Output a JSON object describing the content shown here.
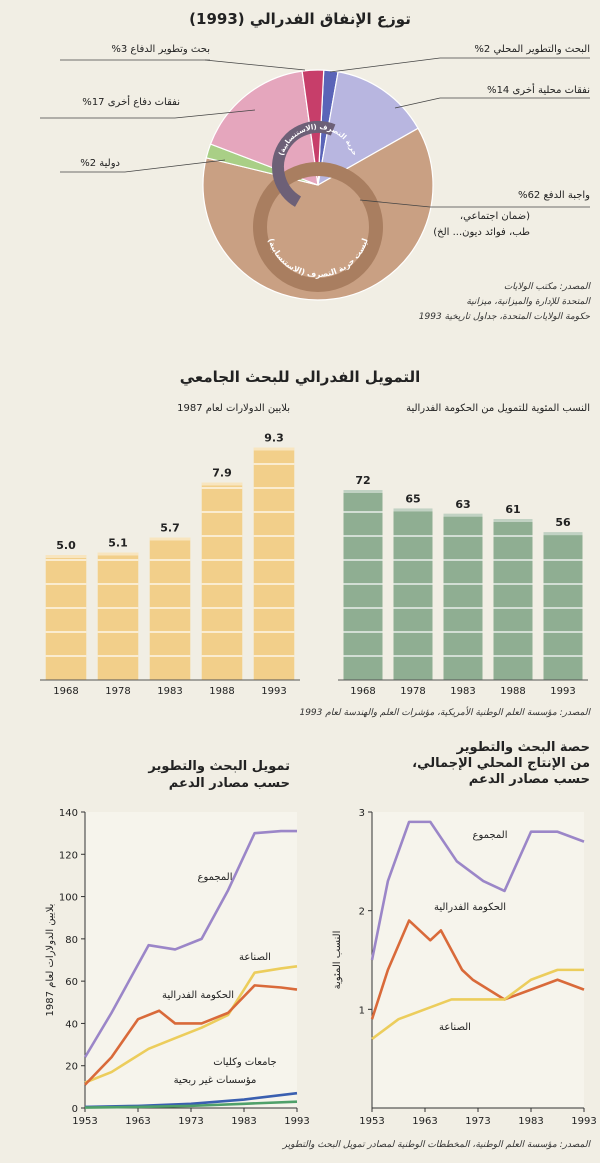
{
  "pie": {
    "title": "توزع الإنفاق الفدرالي (1993)",
    "labels": {
      "defense_rd": "بحث وتطوير الدفاع 3%",
      "domestic_rd": "البحث والتطوير المحلي 2%",
      "other_defense": "نفقات دفاع أخرى 17%",
      "other_domestic": "نفقات محلية أخرى 14%",
      "international": "دولية 2%",
      "mandatory": "واجبة الدفع 62%",
      "mandatory_note1": "(ضمان اجتماعي،",
      "mandatory_note2": "طب، فوائد ديون... الخ)"
    },
    "inner_discretionary": "حرية التصرف (الاستنسابية)",
    "inner_nondiscretionary": "ليست حرية التصرف (الاستنسابية)",
    "source": [
      "المصدر: مكتب الولايات",
      "المتحدة للإدارة والميزانية، ميزانية",
      "حكومة الولايات المتحدة، جداول تاريخية 1993"
    ],
    "colors": {
      "defense_rd": "#c73e6a",
      "domestic_rd": "#5a64b8",
      "other_defense": "#e5a6bd",
      "other_domestic": "#b8b6e0",
      "international": "#a9cf86",
      "mandatory": "#c9a083",
      "ring": "#a97e60"
    }
  },
  "chart_data": [
    {
      "type": "pie",
      "title": "توزع الإنفاق الفدرالي (1993)",
      "slices": [
        {
          "label": "البحث والتطوير المحلي",
          "value": 2
        },
        {
          "label": "نفقات محلية أخرى",
          "value": 14
        },
        {
          "label": "واجبة الدفع",
          "value": 62
        },
        {
          "label": "دولية",
          "value": 2
        },
        {
          "label": "نفقات دفاع أخرى",
          "value": 17
        },
        {
          "label": "بحث وتطوير الدفاع",
          "value": 3
        }
      ]
    },
    {
      "type": "bar",
      "title": "التمويل الفدرالي للبحث الجامعي",
      "subtitle": "بلايين الدولارات لعام 1987",
      "categories": [
        "1968",
        "1978",
        "1983",
        "1988",
        "1993"
      ],
      "values": [
        5.0,
        5.1,
        5.7,
        7.9,
        9.3
      ],
      "value_labels": [
        "5.0",
        "5.1",
        "5.7",
        "7.9",
        "9.3"
      ],
      "ylim": [
        0,
        10
      ],
      "color": "#f2cf8a"
    },
    {
      "type": "bar",
      "title": "التمويل الفدرالي للبحث الجامعي",
      "subtitle": "النسب المئوية للتمويل من الحكومة الفدرالية",
      "categories": [
        "1968",
        "1978",
        "1983",
        "1988",
        "1993"
      ],
      "values": [
        72,
        65,
        63,
        61,
        56
      ],
      "value_labels": [
        "72",
        "65",
        "63",
        "61",
        "56"
      ],
      "ylim": [
        0,
        80
      ],
      "color": "#8fae92"
    },
    {
      "type": "line",
      "title": "تمويل البحث والتطوير حسب مصادر الدعم",
      "ylabel": "بلايين الدولارات لعام 1987",
      "x_ticks": [
        "1953",
        "1963",
        "1973",
        "1983",
        "1993"
      ],
      "y_ticks": [
        "0",
        "20",
        "40",
        "60",
        "80",
        "100",
        "120",
        "140"
      ],
      "xlim": [
        1953,
        1993
      ],
      "ylim": [
        0,
        140
      ],
      "series": [
        {
          "name": "المجموع",
          "color": "#9b86c8",
          "x": [
            1953,
            1958,
            1965,
            1970,
            1975,
            1980,
            1985,
            1990,
            1993
          ],
          "y": [
            24,
            45,
            77,
            75,
            80,
            103,
            130,
            131,
            131
          ]
        },
        {
          "name": "الصناعة",
          "color": "#eccd5c",
          "x": [
            1953,
            1958,
            1965,
            1970,
            1975,
            1980,
            1985,
            1990,
            1993
          ],
          "y": [
            12,
            17,
            28,
            33,
            38,
            44,
            64,
            66,
            67
          ]
        },
        {
          "name": "الحكومة الفدرالية",
          "color": "#d96a3a",
          "x": [
            1953,
            1958,
            1963,
            1967,
            1970,
            1975,
            1980,
            1985,
            1990,
            1993
          ],
          "y": [
            11,
            24,
            42,
            46,
            40,
            40,
            45,
            58,
            57,
            56
          ]
        },
        {
          "name": "جامعات وكليات",
          "color": "#3a5fb0",
          "x": [
            1953,
            1963,
            1973,
            1983,
            1993
          ],
          "y": [
            0.5,
            1,
            2,
            4,
            7
          ]
        },
        {
          "name": "مؤسسات غير ربحية",
          "color": "#4fa06a",
          "x": [
            1953,
            1963,
            1973,
            1983,
            1993
          ],
          "y": [
            0.2,
            0.5,
            1,
            2,
            3
          ]
        }
      ]
    },
    {
      "type": "line",
      "title": "حصة البحث والتطوير من الإنتاج المحلي الإجمالي، حسب مصادر الدعم",
      "ylabel": "النسب المئوية",
      "x_ticks": [
        "1953",
        "1963",
        "1973",
        "1983",
        "1993"
      ],
      "y_ticks": [
        "1",
        "2",
        "3"
      ],
      "xlim": [
        1953,
        1993
      ],
      "ylim": [
        0,
        3
      ],
      "series": [
        {
          "name": "المجموع",
          "color": "#9b86c8",
          "x": [
            1953,
            1956,
            1960,
            1964,
            1969,
            1974,
            1978,
            1983,
            1988,
            1993
          ],
          "y": [
            1.5,
            2.3,
            2.9,
            2.9,
            2.5,
            2.3,
            2.2,
            2.8,
            2.8,
            2.7
          ]
        },
        {
          "name": "الحكومة الفدرالية",
          "color": "#d96a3a",
          "x": [
            1953,
            1956,
            1960,
            1964,
            1966,
            1968,
            1970,
            1972,
            1978,
            1983,
            1988,
            1993
          ],
          "y": [
            0.9,
            1.4,
            1.9,
            1.7,
            1.8,
            1.6,
            1.4,
            1.3,
            1.1,
            1.2,
            1.3,
            1.2
          ]
        },
        {
          "name": "الصناعة",
          "color": "#eccd5c",
          "x": [
            1953,
            1958,
            1963,
            1968,
            1973,
            1978,
            1983,
            1988,
            1993
          ],
          "y": [
            0.7,
            0.9,
            1.0,
            1.1,
            1.1,
            1.1,
            1.3,
            1.4,
            1.4
          ]
        }
      ]
    }
  ],
  "bars_section": {
    "title": "التمويل الفدرالي للبحث الجامعي",
    "left_subtitle": "بلايين الدولارات لعام 1987",
    "right_subtitle": "النسب المئوية للتمويل من الحكومة الفدرالية",
    "source": "المصدر: مؤسسة العلم الوطنية الأمريكية، مؤشرات العلم والهندسة لعام 1993"
  },
  "lines_section": {
    "left_title": [
      "تمويل البحث والتطوير",
      "حسب مصادر الدعم"
    ],
    "right_title": [
      "حصة البحث والتطوير",
      "من الإنتاج المحلي الإجمالي،",
      "حسب مصادر الدعم"
    ],
    "source": "المصدر: مؤسسة العلم الوطنية، المخططات الوطنية لمصادر تمويل البحث والتطوير"
  }
}
